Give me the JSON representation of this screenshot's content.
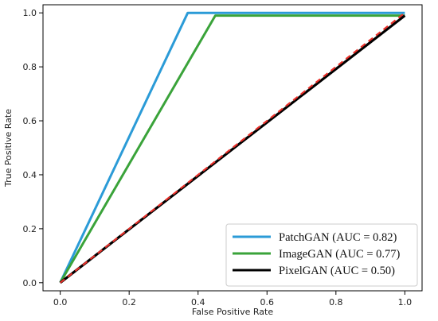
{
  "chart_data": {
    "type": "line",
    "title": "",
    "xlabel": "False Positive Rate",
    "ylabel": "True Positive Rate",
    "xlim": [
      -0.05,
      1.05
    ],
    "ylim": [
      -0.03,
      1.03
    ],
    "xticks": [
      "0.0",
      "0.2",
      "0.4",
      "0.6",
      "0.8",
      "1.0"
    ],
    "yticks": [
      "0.0",
      "0.2",
      "0.4",
      "0.6",
      "0.8",
      "1.0"
    ],
    "grid": false,
    "legend_position": "bottom-right",
    "series": [
      {
        "name": "PatchGAN (AUC = 0.82)",
        "color": "#2b9bd7",
        "x": [
          0.0,
          0.37,
          1.0
        ],
        "y": [
          0.0,
          1.0,
          1.0
        ]
      },
      {
        "name": "ImageGAN (AUC = 0.77)",
        "color": "#3aa33a",
        "x": [
          0.0,
          0.45,
          1.0
        ],
        "y": [
          0.0,
          0.99,
          0.99
        ]
      },
      {
        "name": "PixelGAN (AUC = 0.50)",
        "color": "#000000",
        "x": [
          0.0,
          1.0
        ],
        "y": [
          0.0,
          0.99
        ]
      }
    ],
    "reference_line": {
      "style": "dashed",
      "color": "#e8302a",
      "x": [
        0.0,
        1.0
      ],
      "y": [
        0.0,
        1.0
      ]
    }
  }
}
